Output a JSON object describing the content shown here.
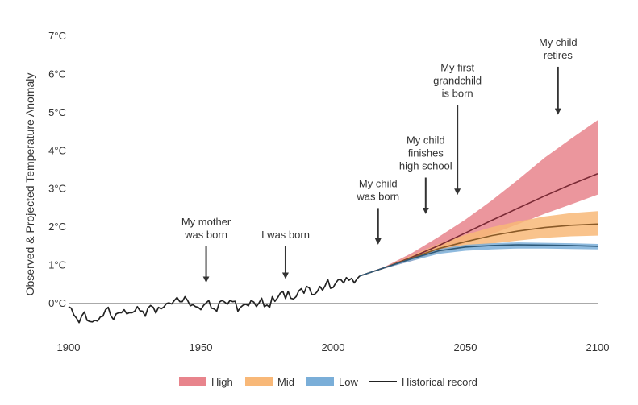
{
  "chart_data": {
    "type": "line",
    "ylabel": "Observed & Projected Temperature Anomaly",
    "xlim": [
      1900,
      2100
    ],
    "ylim": [
      -0.5,
      7
    ],
    "x_ticks": [
      {
        "value": 1900,
        "label": "1900"
      },
      {
        "value": 1950,
        "label": "1950"
      },
      {
        "value": 2000,
        "label": "2000"
      },
      {
        "value": 2050,
        "label": "2050"
      },
      {
        "value": 2100,
        "label": "2100"
      }
    ],
    "y_ticks": [
      {
        "value": 0,
        "label": "0°C"
      },
      {
        "value": 1,
        "label": "1°C"
      },
      {
        "value": 2,
        "label": "2°C"
      },
      {
        "value": 3,
        "label": "3°C"
      },
      {
        "value": 4,
        "label": "4°C"
      },
      {
        "value": 5,
        "label": "5°C"
      },
      {
        "value": 6,
        "label": "6°C"
      },
      {
        "value": 7,
        "label": "7°C"
      }
    ],
    "grid": false,
    "legend_position": "bottom",
    "legend": [
      {
        "label": "High",
        "kind": "band",
        "color": "#e8848c"
      },
      {
        "label": "Mid",
        "kind": "band",
        "color": "#f8b878"
      },
      {
        "label": "Low",
        "kind": "band",
        "color": "#7aaed8"
      },
      {
        "label": "Historical record",
        "kind": "line",
        "color": "#222222"
      }
    ],
    "historical": {
      "name": "Historical record",
      "color": "#222222",
      "x": [
        1900,
        1901,
        1902,
        1903,
        1904,
        1905,
        1906,
        1907,
        1908,
        1909,
        1910,
        1911,
        1912,
        1913,
        1914,
        1915,
        1916,
        1917,
        1918,
        1919,
        1920,
        1921,
        1922,
        1923,
        1924,
        1925,
        1926,
        1927,
        1928,
        1929,
        1930,
        1931,
        1932,
        1933,
        1934,
        1935,
        1936,
        1937,
        1938,
        1939,
        1940,
        1941,
        1942,
        1943,
        1944,
        1945,
        1946,
        1947,
        1948,
        1949,
        1950,
        1951,
        1952,
        1953,
        1954,
        1955,
        1956,
        1957,
        1958,
        1959,
        1960,
        1961,
        1962,
        1963,
        1964,
        1965,
        1966,
        1967,
        1968,
        1969,
        1970,
        1971,
        1972,
        1973,
        1974,
        1975,
        1976,
        1977,
        1978,
        1979,
        1980,
        1981,
        1982,
        1983,
        1984,
        1985,
        1986,
        1987,
        1988,
        1989,
        1990,
        1991,
        1992,
        1993,
        1994,
        1995,
        1996,
        1997,
        1998,
        1999,
        2000,
        2001,
        2002,
        2003,
        2004,
        2005,
        2006,
        2007,
        2008,
        2009,
        2010
      ],
      "y": [
        -0.08,
        -0.12,
        -0.3,
        -0.38,
        -0.5,
        -0.32,
        -0.22,
        -0.44,
        -0.47,
        -0.48,
        -0.44,
        -0.46,
        -0.35,
        -0.33,
        -0.16,
        -0.1,
        -0.32,
        -0.42,
        -0.27,
        -0.24,
        -0.24,
        -0.16,
        -0.27,
        -0.24,
        -0.24,
        -0.2,
        -0.08,
        -0.19,
        -0.2,
        -0.33,
        -0.12,
        -0.05,
        -0.1,
        -0.25,
        -0.1,
        -0.14,
        -0.09,
        0.0,
        0.02,
        -0.01,
        0.08,
        0.16,
        0.05,
        0.05,
        0.18,
        0.08,
        -0.06,
        -0.03,
        -0.08,
        -0.1,
        -0.16,
        -0.05,
        0.02,
        0.08,
        -0.12,
        -0.14,
        -0.2,
        0.04,
        0.08,
        0.04,
        -0.02,
        0.08,
        0.05,
        0.06,
        -0.2,
        -0.1,
        -0.04,
        -0.02,
        -0.06,
        0.08,
        0.04,
        -0.08,
        0.02,
        0.14,
        -0.08,
        -0.04,
        -0.1,
        0.18,
        0.06,
        0.15,
        0.27,
        0.32,
        0.13,
        0.32,
        0.14,
        0.12,
        0.18,
        0.33,
        0.39,
        0.27,
        0.45,
        0.41,
        0.23,
        0.24,
        0.31,
        0.45,
        0.35,
        0.47,
        0.63,
        0.4,
        0.42,
        0.54,
        0.63,
        0.62,
        0.54,
        0.68,
        0.61,
        0.66,
        0.54,
        0.64,
        0.72
      ]
    },
    "projections": [
      {
        "name": "High",
        "band_color": "#e8848c",
        "line_color": "#7a2a35",
        "x": [
          2010,
          2020,
          2030,
          2040,
          2050,
          2060,
          2070,
          2080,
          2090,
          2100
        ],
        "mean": [
          0.72,
          0.95,
          1.22,
          1.52,
          1.85,
          2.18,
          2.5,
          2.82,
          3.12,
          3.4
        ],
        "low": [
          0.72,
          0.93,
          1.12,
          1.36,
          1.58,
          1.82,
          2.08,
          2.35,
          2.6,
          2.85
        ],
        "high": [
          0.72,
          0.98,
          1.33,
          1.75,
          2.2,
          2.7,
          3.25,
          3.82,
          4.32,
          4.8
        ]
      },
      {
        "name": "Mid",
        "band_color": "#f8b878",
        "line_color": "#8a5a28",
        "x": [
          2010,
          2020,
          2030,
          2040,
          2050,
          2060,
          2070,
          2080,
          2090,
          2100
        ],
        "mean": [
          0.72,
          0.95,
          1.2,
          1.44,
          1.62,
          1.78,
          1.9,
          1.99,
          2.05,
          2.08
        ],
        "low": [
          0.72,
          0.93,
          1.14,
          1.33,
          1.46,
          1.57,
          1.65,
          1.72,
          1.76,
          1.78
        ],
        "high": [
          0.72,
          0.97,
          1.27,
          1.56,
          1.8,
          2.0,
          2.15,
          2.28,
          2.37,
          2.42
        ]
      },
      {
        "name": "Low",
        "band_color": "#7aaed8",
        "line_color": "#2c5878",
        "x": [
          2010,
          2020,
          2030,
          2040,
          2050,
          2060,
          2070,
          2080,
          2090,
          2100
        ],
        "mean": [
          0.72,
          0.95,
          1.18,
          1.38,
          1.48,
          1.52,
          1.54,
          1.53,
          1.52,
          1.5
        ],
        "low": [
          0.72,
          0.93,
          1.12,
          1.3,
          1.38,
          1.42,
          1.44,
          1.44,
          1.43,
          1.42
        ],
        "high": [
          0.72,
          0.97,
          1.22,
          1.43,
          1.54,
          1.58,
          1.6,
          1.59,
          1.58,
          1.56
        ]
      }
    ],
    "annotations": [
      {
        "lines": [
          "My mother",
          "was born"
        ],
        "x": 1952,
        "arrow_top": 1.5,
        "arrow_bottom": 0.5
      },
      {
        "lines": [
          "I was born"
        ],
        "x": 1982,
        "arrow_top": 1.5,
        "arrow_bottom": 0.6
      },
      {
        "lines": [
          "My child",
          "was born"
        ],
        "x": 2017,
        "arrow_top": 2.5,
        "arrow_bottom": 1.5
      },
      {
        "lines": [
          "My child",
          "finishes",
          "high school"
        ],
        "x": 2035,
        "arrow_top": 3.3,
        "arrow_bottom": 2.3
      },
      {
        "lines": [
          "My first",
          "grandchild",
          "is born"
        ],
        "x": 2047,
        "arrow_top": 5.2,
        "arrow_bottom": 2.8
      },
      {
        "lines": [
          "My child",
          "retires"
        ],
        "x": 2085,
        "arrow_top": 6.2,
        "arrow_bottom": 4.9
      }
    ]
  }
}
